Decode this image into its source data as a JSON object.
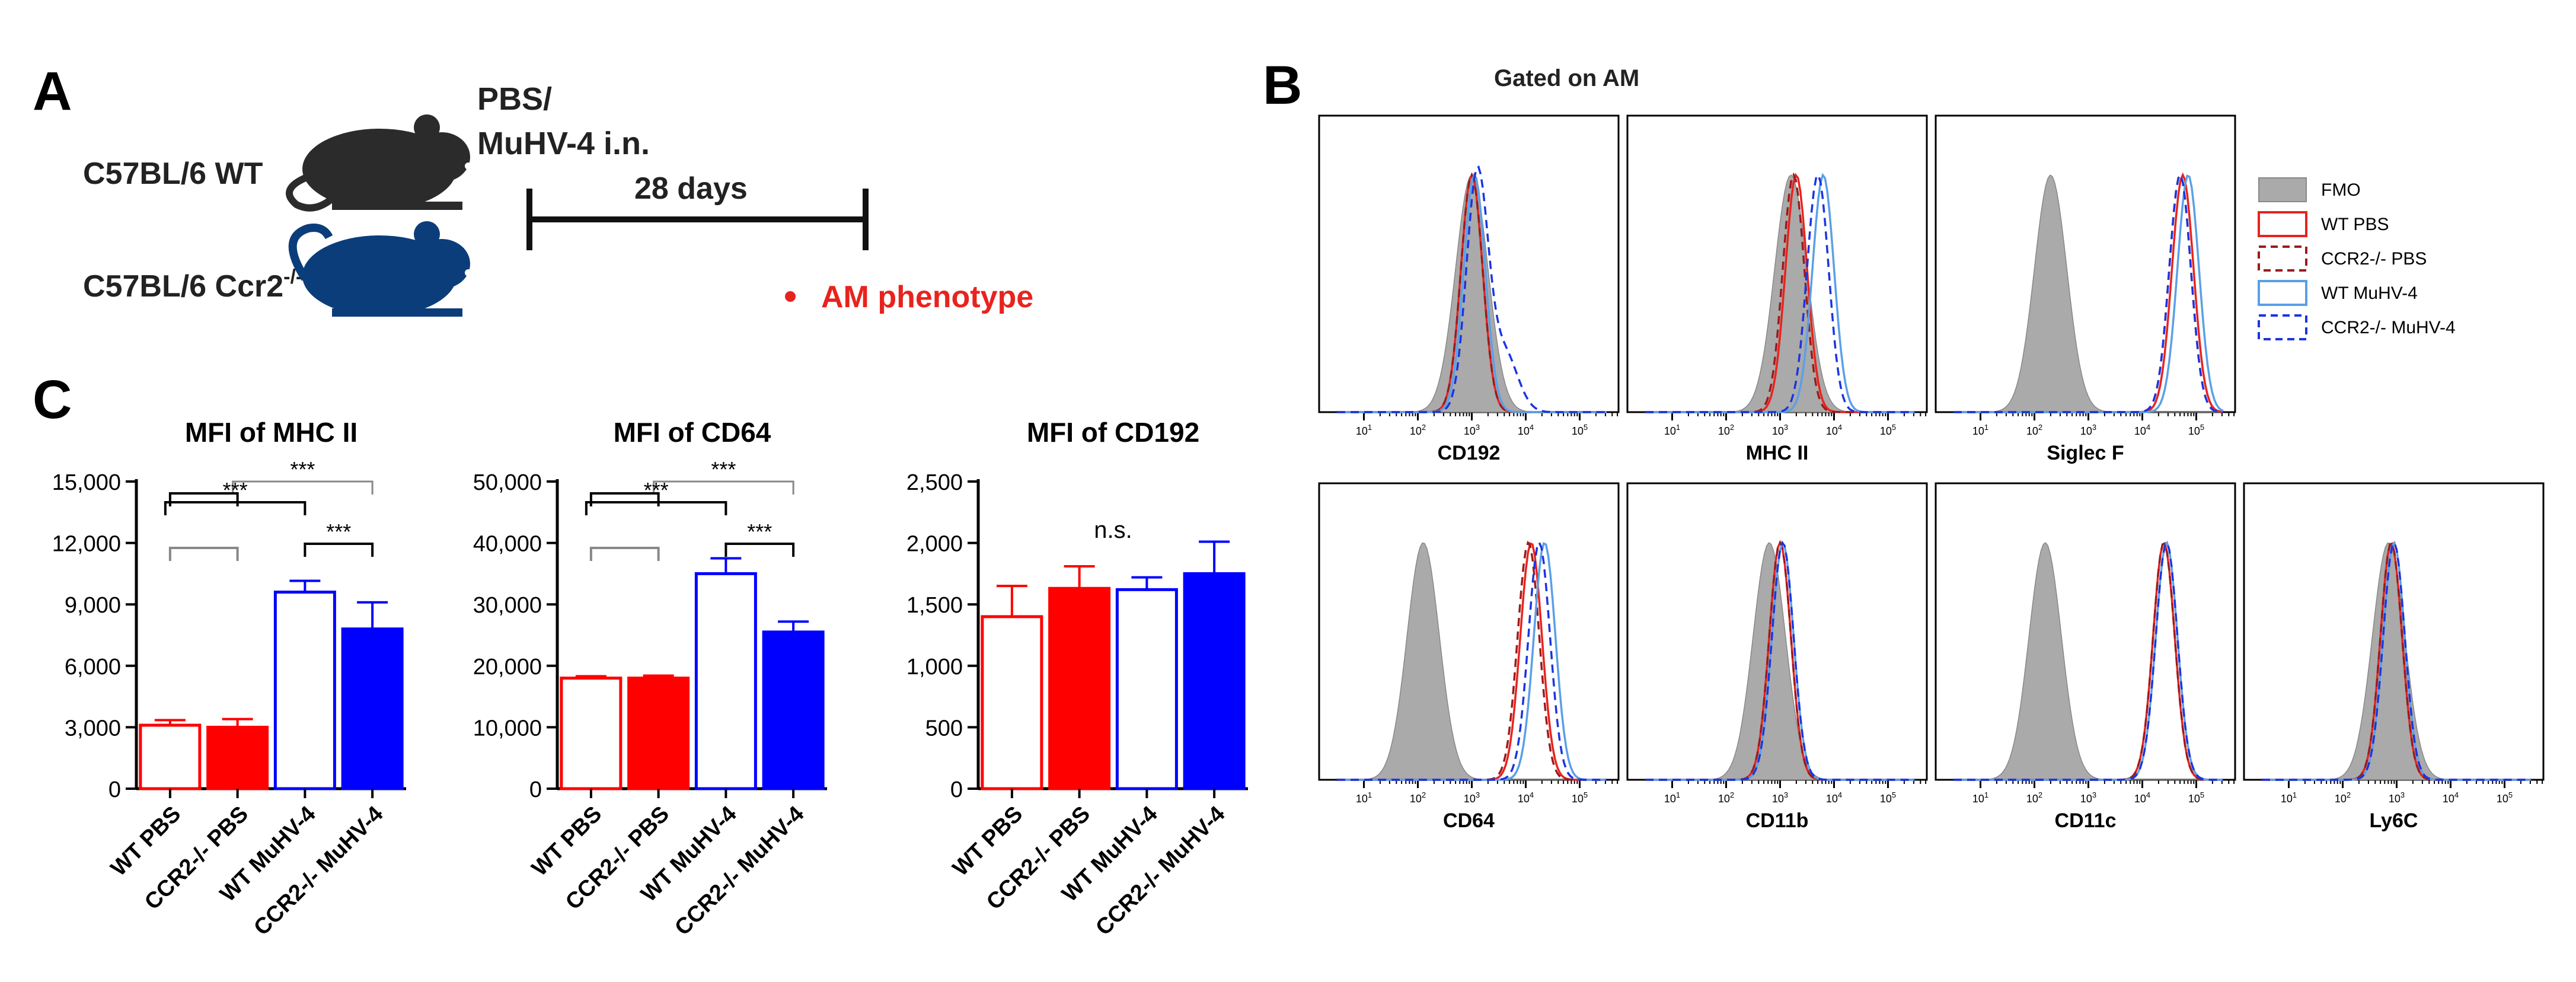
{
  "panel_a": {
    "letter": "A",
    "mouse_wt": "C57BL/6 WT",
    "mouse_ko_base": "C57BL/6 Ccr2",
    "mouse_ko_sup": "-/-",
    "treatment_line1": "PBS/",
    "treatment_line2": "MuHV-4 i.n.",
    "duration": "28 days",
    "readout": "AM phenotype",
    "colors": {
      "wt_mouse": "#2b2b2b",
      "ko_mouse": "#0b3d7a",
      "readout": "#e8231e"
    }
  },
  "panel_b": {
    "letter": "B",
    "gate_label": "Gated on AM",
    "legend": [
      {
        "label": "FMO",
        "style": "fill",
        "color": "#aaaaaa"
      },
      {
        "label": "WT PBS",
        "style": "solid",
        "color": "#e8231e"
      },
      {
        "label": "CCR2-/- PBS",
        "style": "dashed",
        "color": "#9b1b1b"
      },
      {
        "label": "WT MuHV-4",
        "style": "solid",
        "color": "#5aa0e6"
      },
      {
        "label": "CCR2-/- MuHV-4",
        "style": "dashed",
        "color": "#1a35e0"
      }
    ],
    "histograms": [
      {
        "marker": "CD192",
        "ticks": [
          "10^1",
          "10^2",
          "10^3",
          "10^4",
          "10^5"
        ],
        "peaks": [
          3.0,
          3.0,
          3.0,
          3.05,
          3.1
        ]
      },
      {
        "marker": "MHC II",
        "ticks": [
          "10^1",
          "10^2",
          "10^3",
          "10^4",
          "10^5"
        ],
        "peaks": [
          3.2,
          3.3,
          3.25,
          3.8,
          3.7
        ]
      },
      {
        "marker": "Siglec F",
        "ticks": [
          "10^1",
          "10^2",
          "10^3",
          "10^4",
          "10^5"
        ],
        "peaks": [
          2.3,
          4.75,
          4.7,
          4.85,
          4.7
        ]
      },
      {
        "marker": "CD64",
        "ticks": [
          "10^1",
          "10^2",
          "10^3",
          "10^4",
          "10^5"
        ],
        "peaks": [
          2.1,
          4.1,
          4.05,
          4.35,
          4.25
        ]
      },
      {
        "marker": "CD11b",
        "ticks": [
          "10^1",
          "10^2",
          "10^3",
          "10^4",
          "10^5"
        ],
        "peaks": [
          2.8,
          3.0,
          3.0,
          3.05,
          3.05
        ]
      },
      {
        "marker": "CD11c",
        "ticks": [
          "10^1",
          "10^2",
          "10^3",
          "10^4",
          "10^5"
        ],
        "peaks": [
          2.2,
          4.4,
          4.4,
          4.45,
          4.45
        ]
      },
      {
        "marker": "Ly6C",
        "ticks": [
          "10^1",
          "10^2",
          "10^3",
          "10^4",
          "10^5"
        ],
        "peaks": [
          2.85,
          2.9,
          2.9,
          2.95,
          2.95
        ]
      }
    ]
  },
  "panel_c": {
    "letter": "C"
  },
  "chart_data": [
    {
      "type": "bar",
      "title": "MFI of MHC II",
      "categories": [
        "WT PBS",
        "CCR2-/- PBS",
        "WT MuHV-4",
        "CCR2-/- MuHV-4"
      ],
      "values": [
        3100,
        3000,
        9600,
        7800
      ],
      "errors": [
        250,
        400,
        550,
        1300
      ],
      "fills": [
        "#ffffff",
        "#ff0000",
        "#ffffff",
        "#0000ff"
      ],
      "strokes": [
        "#ff0000",
        "#ff0000",
        "#0000ff",
        "#0000ff"
      ],
      "ylim": [
        0,
        15000
      ],
      "yticks": [
        "0",
        "3,000",
        "6,000",
        "9,000",
        "12,000",
        "15,000"
      ],
      "significance": [
        {
          "label": "***",
          "labels_between": [
            "CCR2-/- PBS",
            "CCR2-/- MuHV-4"
          ],
          "level": 4
        },
        {
          "label": "***",
          "labels_between": [
            "WT PBS",
            "WT MuHV-4"
          ],
          "level": 3
        },
        {
          "label": "***",
          "labels_between": [
            "WT MuHV-4",
            "CCR2-/- MuHV-4"
          ],
          "level": 1
        }
      ]
    },
    {
      "type": "bar",
      "title": "MFI of CD64",
      "categories": [
        "WT PBS",
        "CCR2-/- PBS",
        "WT MuHV-4",
        "CCR2-/- MuHV-4"
      ],
      "values": [
        18000,
        18000,
        35000,
        25500
      ],
      "errors": [
        300,
        400,
        2500,
        1700
      ],
      "fills": [
        "#ffffff",
        "#ff0000",
        "#ffffff",
        "#0000ff"
      ],
      "strokes": [
        "#ff0000",
        "#ff0000",
        "#0000ff",
        "#0000ff"
      ],
      "ylim": [
        0,
        50000
      ],
      "yticks": [
        "0",
        "10,000",
        "20,000",
        "30,000",
        "40,000",
        "50,000"
      ],
      "significance": [
        {
          "label": "***",
          "labels_between": [
            "CCR2-/- PBS",
            "CCR2-/- MuHV-4"
          ],
          "level": 4
        },
        {
          "label": "***",
          "labels_between": [
            "WT PBS",
            "WT MuHV-4"
          ],
          "level": 3
        },
        {
          "label": "***",
          "labels_between": [
            "WT MuHV-4",
            "CCR2-/- MuHV-4"
          ],
          "level": 1
        }
      ]
    },
    {
      "type": "bar",
      "title": "MFI of CD192",
      "categories": [
        "WT PBS",
        "CCR2-/- PBS",
        "WT MuHV-4",
        "CCR2-/- MuHV-4"
      ],
      "values": [
        1400,
        1630,
        1620,
        1750
      ],
      "errors": [
        250,
        180,
        100,
        260
      ],
      "fills": [
        "#ffffff",
        "#ff0000",
        "#ffffff",
        "#0000ff"
      ],
      "strokes": [
        "#ff0000",
        "#ff0000",
        "#0000ff",
        "#0000ff"
      ],
      "ylim": [
        0,
        2500
      ],
      "yticks": [
        "0",
        "500",
        "1,000",
        "1,500",
        "2,000",
        "2,500"
      ],
      "annotation": "n.s."
    }
  ]
}
